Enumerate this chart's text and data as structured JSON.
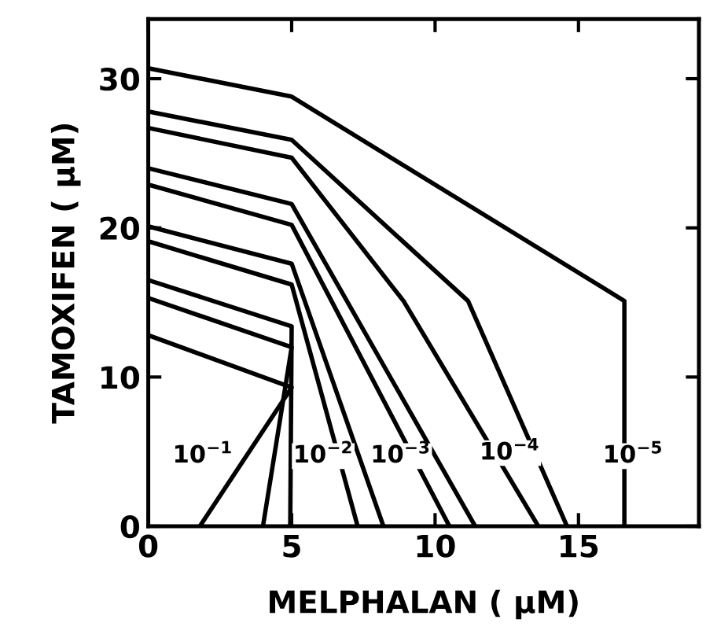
{
  "chart_data": {
    "type": "line",
    "xlabel": "MELPHALAN ( μM)",
    "ylabel": "TAMOXIFEN ( μM)",
    "xlim": [
      0,
      19.2
    ],
    "ylim": [
      0,
      34
    ],
    "xticks": [
      0,
      5,
      10,
      15
    ],
    "yticks": [
      0,
      10,
      20,
      30
    ],
    "grid": false,
    "legend": false,
    "marker": "none",
    "line_style": "solid",
    "series": [
      {
        "color": "#000000",
        "x": [
          0,
          5,
          16.6,
          16.6
        ],
        "values": [
          30.7,
          28.8,
          15.1,
          0
        ]
      },
      {
        "color": "#000000",
        "x": [
          0,
          5,
          11.15,
          14.6
        ],
        "values": [
          27.8,
          25.9,
          15.1,
          0
        ]
      },
      {
        "color": "#000000",
        "x": [
          0,
          5,
          8.9,
          13.6
        ],
        "values": [
          26.7,
          24.7,
          15.1,
          0
        ]
      },
      {
        "color": "#000000",
        "x": [
          0,
          5,
          11.4
        ],
        "values": [
          24.0,
          21.6,
          0
        ]
      },
      {
        "color": "#000000",
        "x": [
          0,
          5,
          10.5
        ],
        "values": [
          22.9,
          20.2,
          0
        ]
      },
      {
        "color": "#000000",
        "x": [
          0,
          5,
          8.2
        ],
        "values": [
          20.1,
          17.6,
          0
        ]
      },
      {
        "color": "#000000",
        "x": [
          0,
          5,
          7.3
        ],
        "values": [
          19.1,
          16.2,
          0
        ]
      },
      {
        "color": "#000000",
        "x": [
          0,
          5,
          4.95
        ],
        "values": [
          16.5,
          13.4,
          0
        ]
      },
      {
        "color": "#000000",
        "x": [
          0,
          5,
          4.0
        ],
        "values": [
          15.3,
          12.0,
          0
        ]
      },
      {
        "color": "#000000",
        "x": [
          0,
          5,
          1.8
        ],
        "values": [
          12.8,
          9.3,
          0
        ]
      }
    ],
    "annotations": [
      {
        "text": "10$^{−1}$",
        "x": 1.9,
        "y": 4.7
      },
      {
        "text": "10$^{−2}$",
        "x": 6.1,
        "y": 4.7
      },
      {
        "text": "10$^{−3}$",
        "x": 8.8,
        "y": 4.7
      },
      {
        "text": "10$^{−4}$",
        "x": 12.6,
        "y": 4.9
      },
      {
        "text": "10$^{−5}$",
        "x": 16.9,
        "y": 4.7
      }
    ]
  }
}
